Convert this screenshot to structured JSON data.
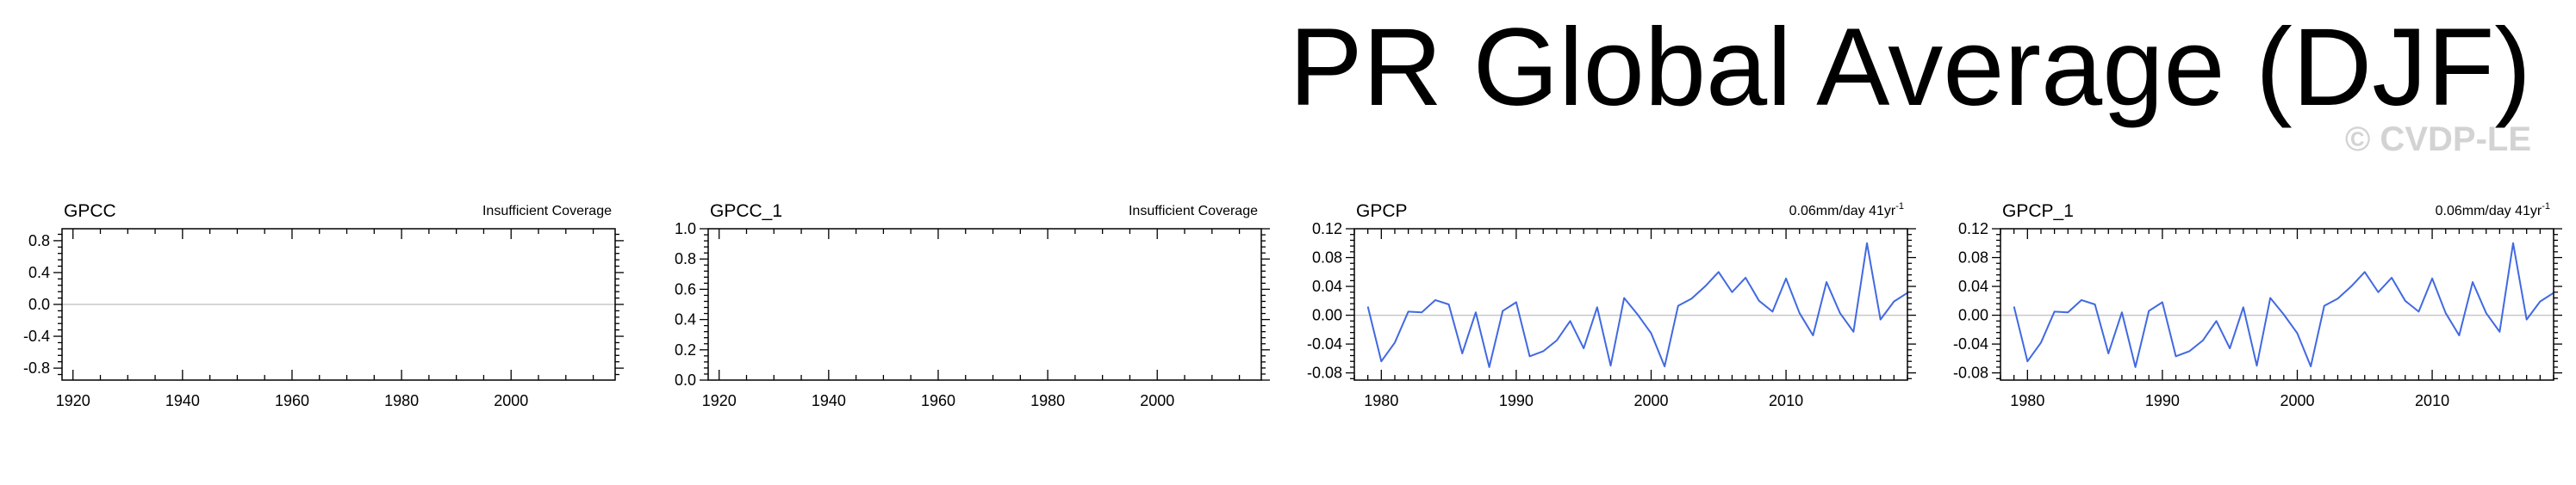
{
  "title": "PR Global Average (DJF)",
  "copyright": "© CVDP-LE",
  "colors": {
    "line": "#4169e1",
    "zero_line": "#c8c8c8",
    "axis": "#000000",
    "copyright": "#d3d3d3"
  },
  "chart_data": [
    {
      "type": "line",
      "title": "GPCC",
      "annotation": "Insufficient Coverage",
      "xlim": [
        1918,
        2019
      ],
      "ylim": [
        -0.95,
        0.95
      ],
      "x_ticks": [
        1920,
        1940,
        1960,
        1980,
        2000
      ],
      "x_tick_labels": [
        "1920",
        "1940",
        "1960",
        "1980",
        "2000"
      ],
      "y_ticks": [
        -0.8,
        -0.4,
        0.0,
        0.4,
        0.8
      ],
      "y_tick_labels": [
        "-0.8",
        "-0.4",
        "0.0",
        "0.4",
        "0.8"
      ],
      "zero_line": true,
      "series": []
    },
    {
      "type": "line",
      "title": "GPCC_1",
      "annotation": "Insufficient Coverage",
      "xlim": [
        1918,
        2019
      ],
      "ylim": [
        0,
        1.0
      ],
      "x_ticks": [
        1920,
        1940,
        1960,
        1980,
        2000
      ],
      "x_tick_labels": [
        "1920",
        "1940",
        "1960",
        "1980",
        "2000"
      ],
      "y_ticks": [
        0.0,
        0.2,
        0.4,
        0.6,
        0.8,
        1.0
      ],
      "y_tick_labels": [
        "0.0",
        "0.2",
        "0.4",
        "0.6",
        "0.8",
        "1.0"
      ],
      "zero_line": false,
      "series": []
    },
    {
      "type": "line",
      "title": "GPCP",
      "annotation": "0.06mm/day 41yr",
      "annotation_sup": "-1",
      "xlim": [
        1978,
        2019
      ],
      "ylim": [
        -0.09,
        0.12
      ],
      "x_ticks": [
        1980,
        1990,
        2000,
        2010
      ],
      "x_tick_labels": [
        "1980",
        "1990",
        "2000",
        "2010"
      ],
      "y_ticks": [
        -0.08,
        -0.04,
        0.0,
        0.04,
        0.08,
        0.12
      ],
      "y_tick_labels": [
        "-0.08",
        "-0.04",
        "0.00",
        "0.04",
        "0.08",
        "0.12"
      ],
      "zero_line": true,
      "series": [
        {
          "x": [
            1979,
            1980,
            1981,
            1982,
            1983,
            1984,
            1985,
            1986,
            1987,
            1988,
            1989,
            1990,
            1991,
            1992,
            1993,
            1994,
            1995,
            1996,
            1997,
            1998,
            1999,
            2000,
            2001,
            2002,
            2003,
            2004,
            2005,
            2006,
            2007,
            2008,
            2009,
            2010,
            2011,
            2012,
            2013,
            2014,
            2015,
            2016,
            2017,
            2018,
            2019
          ],
          "values": [
            0.012,
            -0.064,
            -0.038,
            0.005,
            0.004,
            0.021,
            0.015,
            -0.053,
            0.004,
            -0.072,
            0.006,
            0.018,
            -0.057,
            -0.05,
            -0.035,
            -0.008,
            -0.046,
            0.011,
            -0.07,
            0.024,
            0.001,
            -0.025,
            -0.071,
            0.013,
            0.023,
            0.04,
            0.06,
            0.032,
            0.052,
            0.02,
            0.005,
            0.051,
            0.003,
            -0.028,
            0.046,
            0.003,
            -0.023,
            0.1,
            -0.006,
            0.019,
            0.031
          ]
        }
      ]
    },
    {
      "type": "line",
      "title": "GPCP_1",
      "annotation": "0.06mm/day 41yr",
      "annotation_sup": "-1",
      "xlim": [
        1978,
        2019
      ],
      "ylim": [
        -0.09,
        0.12
      ],
      "x_ticks": [
        1980,
        1990,
        2000,
        2010
      ],
      "x_tick_labels": [
        "1980",
        "1990",
        "2000",
        "2010"
      ],
      "y_ticks": [
        -0.08,
        -0.04,
        0.0,
        0.04,
        0.08,
        0.12
      ],
      "y_tick_labels": [
        "-0.08",
        "-0.04",
        "0.00",
        "0.04",
        "0.08",
        "0.12"
      ],
      "zero_line": true,
      "series": [
        {
          "x": [
            1979,
            1980,
            1981,
            1982,
            1983,
            1984,
            1985,
            1986,
            1987,
            1988,
            1989,
            1990,
            1991,
            1992,
            1993,
            1994,
            1995,
            1996,
            1997,
            1998,
            1999,
            2000,
            2001,
            2002,
            2003,
            2004,
            2005,
            2006,
            2007,
            2008,
            2009,
            2010,
            2011,
            2012,
            2013,
            2014,
            2015,
            2016,
            2017,
            2018,
            2019
          ],
          "values": [
            0.012,
            -0.064,
            -0.038,
            0.005,
            0.004,
            0.021,
            0.015,
            -0.053,
            0.004,
            -0.072,
            0.006,
            0.018,
            -0.057,
            -0.05,
            -0.035,
            -0.008,
            -0.046,
            0.011,
            -0.07,
            0.024,
            0.001,
            -0.025,
            -0.071,
            0.013,
            0.023,
            0.04,
            0.06,
            0.032,
            0.052,
            0.02,
            0.005,
            0.051,
            0.003,
            -0.028,
            0.046,
            0.003,
            -0.023,
            0.1,
            -0.006,
            0.019,
            0.031
          ]
        }
      ]
    }
  ]
}
